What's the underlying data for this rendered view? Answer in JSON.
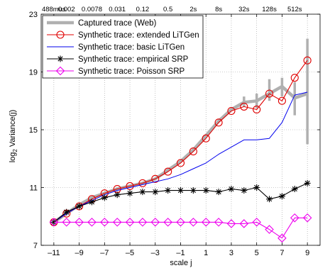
{
  "chart_data": {
    "type": "line",
    "xlabel": "scale j",
    "ylabel": "log2 Variance(j)",
    "ylabel_main": "log",
    "ylabel_sub": "2",
    "ylabel_rest": " Variance(j)",
    "xlim": [
      -12,
      10
    ],
    "ylim": [
      7,
      23
    ],
    "xticks": [
      -11,
      -9,
      -7,
      -5,
      -3,
      -1,
      1,
      3,
      5,
      7,
      9
    ],
    "yticks": [
      7,
      11,
      15,
      19,
      23
    ],
    "top_ticks": [
      {
        "x": -11,
        "label": "488mus"
      },
      {
        "x": -10,
        "label": "0.002"
      },
      {
        "x": -8,
        "label": "0.0078"
      },
      {
        "x": -6,
        "label": "0.031"
      },
      {
        "x": -4,
        "label": "0.12"
      },
      {
        "x": -2,
        "label": "0.5"
      },
      {
        "x": 0,
        "label": "2s"
      },
      {
        "x": 2,
        "label": "8s"
      },
      {
        "x": 4,
        "label": "32s"
      },
      {
        "x": 6,
        "label": "128s"
      },
      {
        "x": 8,
        "label": "512s"
      }
    ],
    "grid": true,
    "legend_position": "top-left",
    "series": [
      {
        "name": "Captured trace (Web)",
        "color": "#b0b0b0",
        "marker": "none",
        "x": [
          -11,
          -10,
          -9,
          -8,
          -7,
          -6,
          -5,
          -4,
          -3,
          -2,
          -1,
          0,
          1,
          2,
          3,
          4,
          5,
          6,
          7,
          8,
          9
        ],
        "y": [
          8.6,
          9.2,
          9.8,
          10.3,
          10.6,
          10.9,
          11.1,
          11.3,
          11.6,
          12.2,
          12.8,
          13.6,
          14.6,
          15.6,
          16.4,
          16.9,
          17.0,
          17.5,
          18.0,
          17.2,
          17.5
        ],
        "error_bars": [
          {
            "x": 4,
            "lo": 16.6,
            "hi": 17.3
          },
          {
            "x": 5,
            "lo": 16.5,
            "hi": 17.5
          },
          {
            "x": 6,
            "lo": 17.0,
            "hi": 18.5
          },
          {
            "x": 7,
            "lo": 17.3,
            "hi": 18.6
          },
          {
            "x": 8,
            "lo": 16.0,
            "hi": 18.3
          },
          {
            "x": 9,
            "lo": 14.0,
            "hi": 21.3
          }
        ]
      },
      {
        "name": "Synthetic trace: extended LiTGen",
        "color": "#e00000",
        "marker": "circle",
        "x": [
          -11,
          -10,
          -9,
          -8,
          -7,
          -6,
          -5,
          -4,
          -3,
          -2,
          -1,
          0,
          1,
          2,
          3,
          4,
          5,
          6,
          7,
          8,
          9
        ],
        "y": [
          8.6,
          9.2,
          9.7,
          10.2,
          10.6,
          10.9,
          11.1,
          11.3,
          11.6,
          12.1,
          12.7,
          13.5,
          14.4,
          15.5,
          16.3,
          16.6,
          16.4,
          17.5,
          17.0,
          18.6,
          19.8
        ]
      },
      {
        "name": "Synthetic trace: basic LiTGen",
        "color": "#0000ee",
        "marker": "none",
        "x": [
          -11,
          -10,
          -9,
          -8,
          -7,
          -6,
          -5,
          -4,
          -3,
          -2,
          -1,
          0,
          1,
          2,
          3,
          4,
          5,
          6,
          7,
          8,
          9
        ],
        "y": [
          8.6,
          9.2,
          9.7,
          10.1,
          10.5,
          10.8,
          11.0,
          11.2,
          11.4,
          11.6,
          11.9,
          12.3,
          12.7,
          13.3,
          13.8,
          14.3,
          14.3,
          14.4,
          15.5,
          17.4,
          17.6
        ]
      },
      {
        "name": "Synthetic trace: empirical SRP",
        "color": "#000000",
        "marker": "asterisk",
        "x": [
          -11,
          -10,
          -9,
          -8,
          -7,
          -6,
          -5,
          -4,
          -3,
          -2,
          -1,
          0,
          1,
          2,
          3,
          4,
          5,
          6,
          7,
          8,
          9
        ],
        "y": [
          8.6,
          9.3,
          9.7,
          10.0,
          10.3,
          10.5,
          10.6,
          10.7,
          10.7,
          10.8,
          10.8,
          10.8,
          10.8,
          10.7,
          10.9,
          10.8,
          11.0,
          10.2,
          10.4,
          10.9,
          11.3
        ]
      },
      {
        "name": "Synthetic trace: Poisson SRP",
        "color": "#ee00ee",
        "marker": "diamond",
        "x": [
          -11,
          -10,
          -9,
          -8,
          -7,
          -6,
          -5,
          -4,
          -3,
          -2,
          -1,
          0,
          1,
          2,
          3,
          4,
          5,
          6,
          7,
          8,
          9
        ],
        "y": [
          8.6,
          8.6,
          8.6,
          8.6,
          8.6,
          8.6,
          8.6,
          8.6,
          8.6,
          8.6,
          8.6,
          8.6,
          8.6,
          8.6,
          8.5,
          8.5,
          8.6,
          8.1,
          7.5,
          8.9,
          8.9
        ]
      }
    ]
  }
}
